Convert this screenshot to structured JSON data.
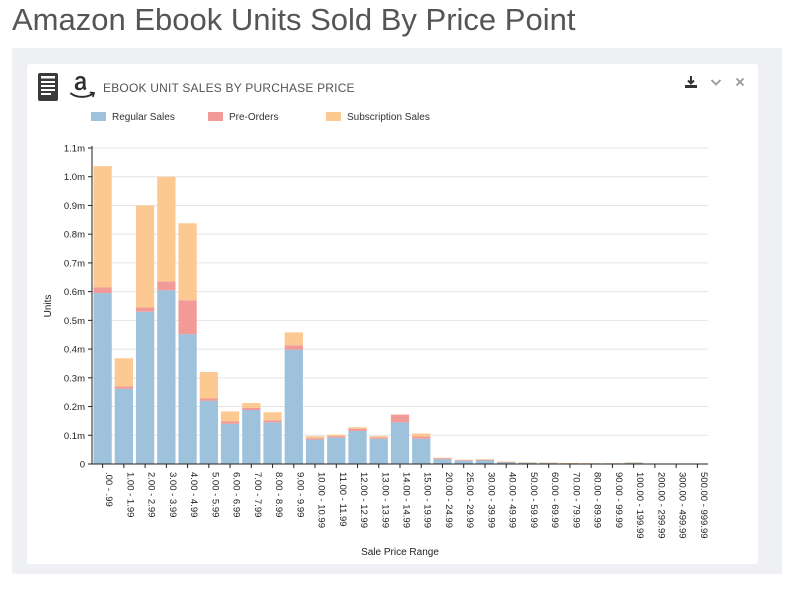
{
  "page": {
    "title": "Amazon Ebook Units Sold By Price Point"
  },
  "card": {
    "title": "EBOOK UNIT SALES BY PURCHASE PRICE",
    "icons": [
      "document-icon",
      "amazon-logo-icon"
    ],
    "tools": [
      "download-icon",
      "chevron-down-icon",
      "close-icon"
    ]
  },
  "chart_data": {
    "type": "bar",
    "stacked": true,
    "title": "EBOOK UNIT SALES BY PURCHASE PRICE",
    "xlabel": "Sale Price Range",
    "ylabel": "Units",
    "ylim": [
      0,
      1100000
    ],
    "yticks": [
      {
        "value": 0,
        "label": "0"
      },
      {
        "value": 100000,
        "label": "0.1m"
      },
      {
        "value": 200000,
        "label": "0.2m"
      },
      {
        "value": 300000,
        "label": "0.3m"
      },
      {
        "value": 400000,
        "label": "0.4m"
      },
      {
        "value": 500000,
        "label": "0.5m"
      },
      {
        "value": 600000,
        "label": "0.6m"
      },
      {
        "value": 700000,
        "label": "0.7m"
      },
      {
        "value": 800000,
        "label": "0.8m"
      },
      {
        "value": 900000,
        "label": "0.9m"
      },
      {
        "value": 1000000,
        "label": "1.0m"
      },
      {
        "value": 1100000,
        "label": "1.1m"
      }
    ],
    "grid": true,
    "legend_position": "top-left",
    "categories": [
      ".00 - .99",
      "1.00 - 1.99",
      "2.00 - 2.99",
      "3.00 - 3.99",
      "4.00 - 4.99",
      "5.00 - 5.99",
      "6.00 - 6.99",
      "7.00 - 7.99",
      "8.00 - 8.99",
      "9.00 - 9.99",
      "10.00 - 10.99",
      "11.00 - 11.99",
      "12.00 - 12.99",
      "13.00 - 13.99",
      "14.00 - 14.99",
      "15.00 - 19.99",
      "20.00 - 24.99",
      "25.00 - 29.99",
      "30.00 - 39.99",
      "40.00 - 49.99",
      "50.00 - 59.99",
      "60.00 - 69.99",
      "70.00 - 79.99",
      "80.00 - 89.99",
      "90.00 - 99.99",
      "100.00 - 199.99",
      "200.00 - 299.99",
      "300.00 - 499.99",
      "500.00 - 999.99"
    ],
    "series": [
      {
        "name": "Regular Sales",
        "color": "#9ec1dc",
        "values": [
          595000,
          262000,
          530000,
          605000,
          452000,
          220000,
          140000,
          188000,
          145000,
          398000,
          85000,
          92000,
          115000,
          88000,
          145000,
          88000,
          18000,
          12000,
          14000,
          7000,
          5000,
          4000,
          3000,
          2000,
          2000,
          5000,
          1000,
          500,
          500
        ]
      },
      {
        "name": "Pre-Orders",
        "color": "#f19a97",
        "values": [
          20000,
          8000,
          15000,
          30000,
          118000,
          8000,
          8000,
          7000,
          7000,
          15000,
          5000,
          5000,
          8000,
          5000,
          27000,
          8000,
          1000,
          1000,
          1000,
          500,
          0,
          0,
          0,
          0,
          0,
          0,
          0,
          0,
          0
        ]
      },
      {
        "name": "Subscription Sales",
        "color": "#fbc991",
        "values": [
          422000,
          98000,
          355000,
          365000,
          268000,
          92000,
          35000,
          17000,
          28000,
          45000,
          7000,
          5000,
          5000,
          4000,
          0,
          10000,
          3000,
          2000,
          2000,
          1000,
          1000,
          1000,
          500,
          500,
          500,
          1000,
          500,
          0,
          0
        ]
      }
    ]
  }
}
